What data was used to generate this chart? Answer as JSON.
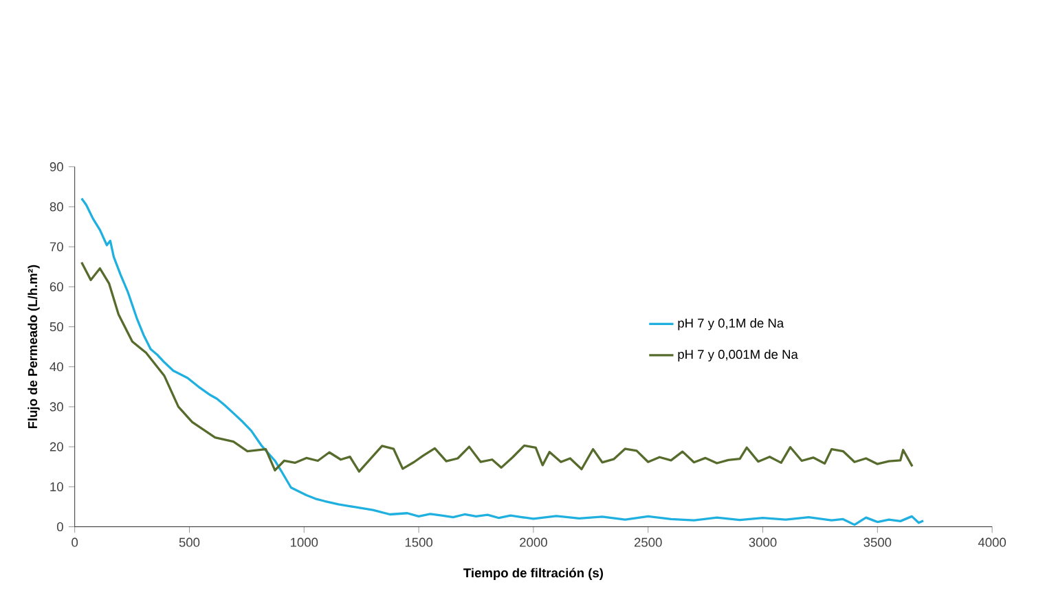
{
  "chart_data": {
    "type": "line",
    "xlabel": "Tiempo de filtración (s)",
    "ylabel": "Flujo de Permeado (L/h.m²)",
    "xlim": [
      0,
      4000
    ],
    "ylim": [
      0,
      90
    ],
    "xticks": [
      0,
      500,
      1000,
      1500,
      2000,
      2500,
      3000,
      3500,
      4000
    ],
    "yticks": [
      0,
      10,
      20,
      30,
      40,
      50,
      60,
      70,
      80,
      90
    ],
    "legend": "right",
    "grid": false,
    "marker": "none",
    "line_style": "solid",
    "series": [
      {
        "name": "pH 7 y 0,1M de Na",
        "color": "#1fb0e0",
        "x": [
          30,
          50,
          80,
          110,
          140,
          155,
          170,
          200,
          231,
          271,
          300,
          331,
          360,
          391,
          430,
          492,
          540,
          592,
          620,
          652,
          690,
          733,
          770,
          813,
          850,
          873,
          900,
          943,
          1010,
          1050,
          1090,
          1150,
          1214,
          1300,
          1374,
          1450,
          1500,
          1550,
          1600,
          1650,
          1700,
          1750,
          1800,
          1850,
          1900,
          1950,
          2000,
          2100,
          2200,
          2300,
          2400,
          2500,
          2600,
          2700,
          2800,
          2900,
          3000,
          3100,
          3200,
          3300,
          3350,
          3400,
          3450,
          3500,
          3550,
          3600,
          3650,
          3680,
          3700
        ],
        "values": [
          82.1,
          80.5,
          77,
          74.2,
          70.4,
          71.5,
          67.5,
          63,
          58.8,
          52.1,
          48,
          44.4,
          43,
          41.1,
          39,
          37.2,
          35,
          32.9,
          32,
          30.5,
          28.5,
          26.2,
          24,
          20.4,
          18,
          16.5,
          14,
          9.8,
          7.9,
          7,
          6.4,
          5.6,
          5,
          4.2,
          3.1,
          3.4,
          2.6,
          3.2,
          2.8,
          2.4,
          3.1,
          2.6,
          3,
          2.2,
          2.8,
          2.4,
          2,
          2.7,
          2.1,
          2.5,
          1.8,
          2.6,
          1.9,
          1.6,
          2.3,
          1.7,
          2.2,
          1.8,
          2.4,
          1.6,
          1.9,
          0.5,
          2.3,
          1.2,
          1.8,
          1.4,
          2.6,
          1,
          1.5
        ]
      },
      {
        "name": "pH 7 y 0,001M de Na",
        "color": "#566b2c",
        "x": [
          30,
          70,
          110,
          150,
          191,
          251,
          311,
          391,
          452,
          512,
          612,
          692,
          753,
          833,
          873,
          913,
          960,
          1010,
          1060,
          1110,
          1160,
          1200,
          1240,
          1290,
          1340,
          1390,
          1430,
          1480,
          1520,
          1570,
          1620,
          1670,
          1720,
          1770,
          1820,
          1860,
          1910,
          1960,
          2010,
          2040,
          2070,
          2120,
          2160,
          2210,
          2260,
          2300,
          2350,
          2400,
          2450,
          2500,
          2550,
          2600,
          2650,
          2700,
          2750,
          2800,
          2850,
          2900,
          2930,
          2980,
          3030,
          3080,
          3120,
          3170,
          3220,
          3270,
          3300,
          3350,
          3400,
          3450,
          3500,
          3550,
          3600,
          3612,
          3652
        ],
        "values": [
          66.1,
          61.7,
          64.6,
          60.8,
          53.1,
          46.3,
          43.5,
          37.7,
          30,
          26.2,
          22.3,
          21.3,
          18.9,
          19.4,
          14.1,
          16.5,
          16,
          17.2,
          16.5,
          18.6,
          16.8,
          17.5,
          13.8,
          17,
          20.2,
          19.5,
          14.5,
          16.2,
          17.8,
          19.6,
          16.4,
          17.1,
          20,
          16.2,
          16.8,
          14.8,
          17.4,
          20.3,
          19.8,
          15.4,
          18.7,
          16.2,
          17.1,
          14.4,
          19.4,
          16.1,
          16.9,
          19.5,
          19,
          16.2,
          17.4,
          16.6,
          18.8,
          16.1,
          17.2,
          15.9,
          16.7,
          17,
          19.8,
          16.3,
          17.5,
          16,
          19.9,
          16.5,
          17.3,
          15.8,
          19.4,
          18.9,
          16.2,
          17.1,
          15.7,
          16.4,
          16.6,
          19.2,
          15.1
        ]
      }
    ]
  }
}
